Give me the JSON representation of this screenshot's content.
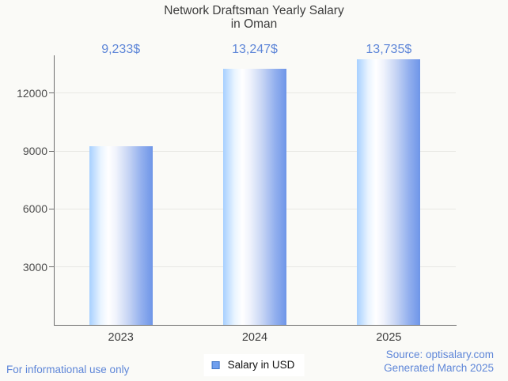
{
  "header": {
    "title_line1": "Network Draftsman Yearly Salary",
    "title_line2": "in Oman"
  },
  "chart_data": {
    "type": "bar",
    "title": "Network Draftsman Yearly Salary in Oman",
    "categories": [
      "2023",
      "2024",
      "2025"
    ],
    "series": [
      {
        "name": "Salary in USD",
        "values": [
          9233,
          13247,
          13735
        ]
      }
    ],
    "value_labels": [
      "9,233$",
      "13,247$",
      "13,735$"
    ],
    "xlabel": "",
    "ylabel": "",
    "yticks": [
      3000,
      6000,
      9000,
      12000
    ],
    "ylim": [
      0,
      13950
    ],
    "grid": true,
    "legend_position": "bottom-center",
    "bar_gradient": [
      "#a7d0ff",
      "#ffffff",
      "#6e95e8"
    ]
  },
  "legend": {
    "label": "Salary in USD"
  },
  "footer": {
    "left_note": "For informational use only",
    "source_line1": "Source: optisalary.com",
    "source_line2": "Generated March 2025"
  },
  "colors": {
    "background": "#fafaf7",
    "accent_blue": "#5e86d8",
    "title_text": "#3d3d3d",
    "axis": "#6e6e6e",
    "gridline": "#e8e8e4",
    "bar_left": "#a7d0ff",
    "bar_mid": "#ffffff",
    "bar_right": "#6e95e8",
    "legend_swatch_fill": "#6f9fee",
    "legend_swatch_border": "#4277c6"
  }
}
